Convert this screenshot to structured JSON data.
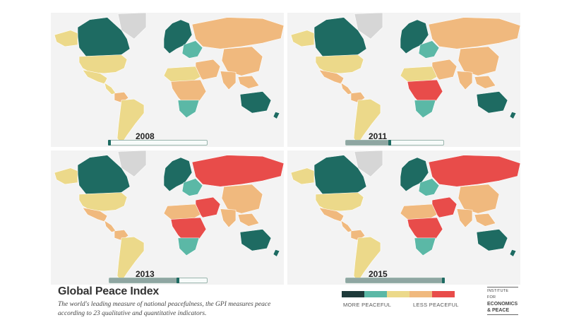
{
  "panels": [
    {
      "year": "2008",
      "progress": 0.0
    },
    {
      "year": "2011",
      "progress": 0.45
    },
    {
      "year": "2013",
      "progress": 0.7
    },
    {
      "year": "2015",
      "progress": 1.0
    }
  ],
  "footer": {
    "title": "Global Peace Index",
    "description": "The world's leading measure of national peacefulness, the GPI measures peace according to 23 qualitative and quantitative indicators."
  },
  "legend": {
    "colors": [
      "#1e3a3a",
      "#5bb8a6",
      "#ecd98a",
      "#f0b97e",
      "#e84c4a"
    ],
    "more_label": "MORE PEACEFUL",
    "less_label": "LESS PEACEFUL"
  },
  "logo": {
    "line1": "INSTITUTE FOR",
    "line2": "ECONOMICS",
    "line3": "& PEACE"
  },
  "palette": {
    "very_peaceful": "#1e6b62",
    "peaceful": "#5bb8a6",
    "medium": "#ecd98a",
    "low": "#f0b97e",
    "very_low": "#e84c4a",
    "no_data": "#d6d6d6"
  },
  "country_scores": [
    {
      "year": "2008",
      "canada": "very_peaceful",
      "usa": "medium",
      "mexico": "medium",
      "south_america": "medium",
      "colombia": "low",
      "greenland": "no_data",
      "europe_west": "very_peaceful",
      "europe_east": "peaceful",
      "russia": "low",
      "china": "low",
      "india": "low",
      "middle_east": "low",
      "africa_north": "medium",
      "africa_central": "low",
      "africa_south": "peaceful",
      "australia": "very_peaceful"
    },
    {
      "year": "2011",
      "canada": "very_peaceful",
      "usa": "medium",
      "mexico": "low",
      "south_america": "medium",
      "colombia": "low",
      "greenland": "no_data",
      "europe_west": "very_peaceful",
      "europe_east": "peaceful",
      "russia": "low",
      "china": "low",
      "india": "low",
      "middle_east": "low",
      "africa_north": "medium",
      "africa_central": "very_low",
      "africa_south": "peaceful",
      "australia": "very_peaceful"
    },
    {
      "year": "2013",
      "canada": "very_peaceful",
      "usa": "medium",
      "mexico": "low",
      "south_america": "medium",
      "colombia": "low",
      "greenland": "no_data",
      "europe_west": "very_peaceful",
      "europe_east": "peaceful",
      "russia": "very_low",
      "china": "low",
      "india": "low",
      "middle_east": "very_low",
      "africa_north": "low",
      "africa_central": "very_low",
      "africa_south": "peaceful",
      "australia": "very_peaceful"
    },
    {
      "year": "2015",
      "canada": "very_peaceful",
      "usa": "medium",
      "mexico": "low",
      "south_america": "medium",
      "colombia": "low",
      "greenland": "no_data",
      "europe_west": "very_peaceful",
      "europe_east": "peaceful",
      "russia": "very_low",
      "china": "low",
      "india": "low",
      "middle_east": "very_low",
      "africa_north": "low",
      "africa_central": "very_low",
      "africa_south": "peaceful",
      "australia": "very_peaceful"
    }
  ]
}
